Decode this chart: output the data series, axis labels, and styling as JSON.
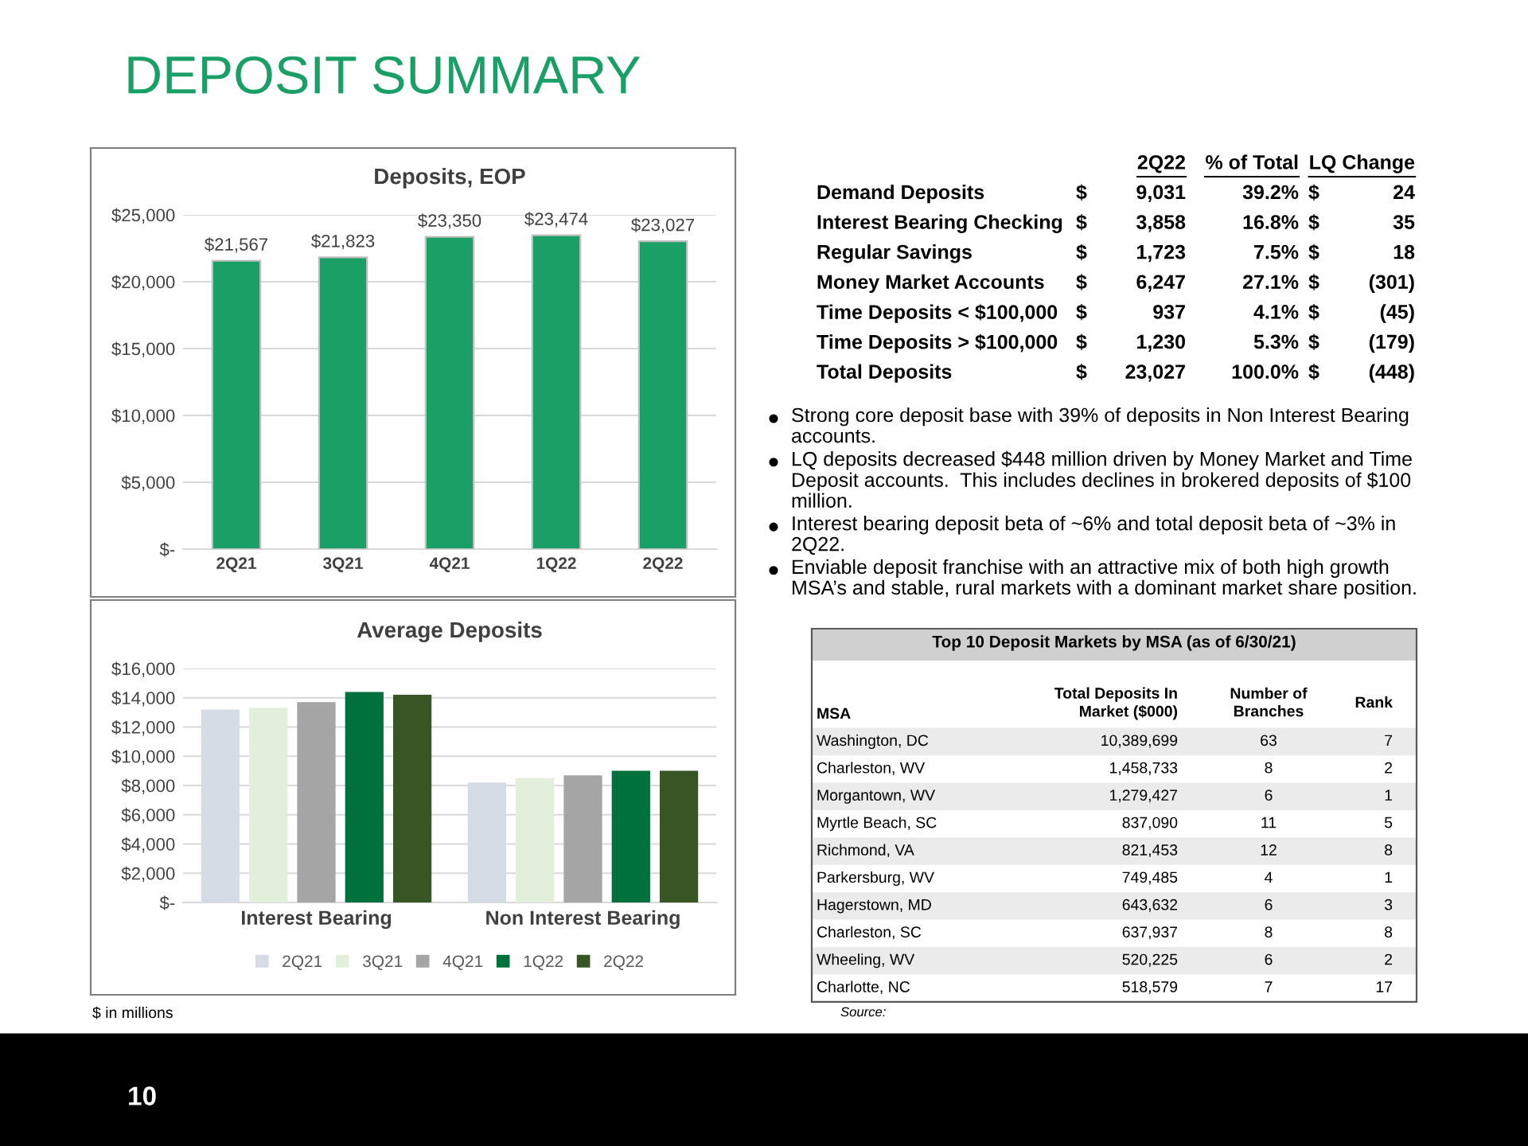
{
  "chart_data": [
    {
      "type": "other",
      "title": "DEPOSIT SUMMARY",
      "annotations": [
        "$ in millions",
        "10"
      ]
    },
    {
      "type": "bar",
      "title": "Deposits, EOP",
      "categories": [
        "2Q21",
        "3Q21",
        "4Q21",
        "1Q22",
        "2Q22"
      ],
      "values": [
        21567,
        21823,
        23350,
        23474,
        23027
      ],
      "color": "#1a9f66",
      "value_labels": [
        "$21,567",
        "$21,823",
        "$23,350",
        "$23,474",
        "$23,027"
      ],
      "ylim": [
        0,
        25000
      ],
      "yticks": [
        {
          "value": 0,
          "label": "$-"
        },
        {
          "value": 5000,
          "label": "$5,000"
        },
        {
          "value": 10000,
          "label": "$10,000"
        },
        {
          "value": 15000,
          "label": "$15,000"
        },
        {
          "value": 20000,
          "label": "$20,000"
        },
        {
          "value": 25000,
          "label": "$25,000"
        }
      ],
      "grid": "y"
    },
    {
      "type": "bar",
      "title": "Average Deposits",
      "categories": [
        "Interest Bearing",
        "Non Interest Bearing"
      ],
      "series": [
        {
          "name": "2Q21",
          "color": "#d6dce5",
          "values": [
            13200,
            8200
          ]
        },
        {
          "name": "3Q21",
          "color": "#e2efda",
          "values": [
            13300,
            8500
          ]
        },
        {
          "name": "4Q21",
          "color": "#a5a5a5",
          "values": [
            13700,
            8700
          ]
        },
        {
          "name": "1Q22",
          "color": "#00703c",
          "values": [
            14400,
            9000
          ]
        },
        {
          "name": "2Q22",
          "color": "#375623",
          "values": [
            14200,
            9000
          ]
        }
      ],
      "ylim": [
        0,
        16000
      ],
      "yticks": [
        {
          "value": 0,
          "label": "$-"
        },
        {
          "value": 2000,
          "label": "$2,000"
        },
        {
          "value": 4000,
          "label": "$4,000"
        },
        {
          "value": 6000,
          "label": "$6,000"
        },
        {
          "value": 8000,
          "label": "$8,000"
        },
        {
          "value": 10000,
          "label": "$10,000"
        },
        {
          "value": 12000,
          "label": "$12,000"
        },
        {
          "value": 14000,
          "label": "$14,000"
        },
        {
          "value": 16000,
          "label": "$16,000"
        }
      ],
      "grid": "y",
      "legend": "bottom"
    },
    {
      "type": "other",
      "categories": [
        "2Q22",
        "% of Total",
        "LQ Change"
      ],
      "y_categories": [
        "Demand Deposits",
        "Interest Bearing Checking",
        "Regular Savings",
        "Money Market Accounts",
        "Time Deposits < $100,000",
        "Time Deposits > $100,000",
        "Total Deposits"
      ],
      "cell_labels": [
        [
          "$ 9,031",
          "39.2%",
          "$ 24"
        ],
        [
          "$ 3,858",
          "16.8%",
          "$ 35"
        ],
        [
          "$ 1,723",
          "7.5%",
          "$ 18"
        ],
        [
          "$ 6,247",
          "27.1%",
          "$ (301)"
        ],
        [
          "$ 937",
          "4.1%",
          "$ (45)"
        ],
        [
          "$ 1,230",
          "5.3%",
          "$ (179)"
        ],
        [
          "$ 23,027",
          "100.0%",
          "$ (448)"
        ]
      ]
    },
    {
      "type": "other",
      "annotations": [
        "Strong core deposit base with 39% of deposits in Non Interest Bearing accounts.",
        "LQ deposits decreased $448 million driven by Money Market and Time Deposit accounts.  This includes declines in brokered deposits of $100 million.",
        "Interest bearing deposit beta of ~6% and total deposit beta of ~3% in 2Q22.",
        "Enviable deposit franchise with an attractive mix of both high growth MSA’s and stable, rural markets with a dominant market share position."
      ]
    },
    {
      "type": "other",
      "title": "Top 10 Deposit Markets by MSA (as of 6/30/21)",
      "ylabel": "MSA",
      "categories": [
        "Total Deposits In\nMarket ($000)",
        "Number of\nBranches",
        "Rank"
      ],
      "y_categories": [
        "Washington, DC",
        "Charleston, WV",
        "Morgantown, WV",
        "Myrtle Beach, SC",
        "Richmond, VA",
        "Parkersburg, WV",
        "Hagerstown, MD",
        "Charleston, SC",
        "Wheeling, WV",
        "Charlotte, NC"
      ],
      "cell_labels": [
        [
          "10,389,699",
          "63",
          "7"
        ],
        [
          "1,458,733",
          "8",
          "2"
        ],
        [
          "1,279,427",
          "6",
          "1"
        ],
        [
          "837,090",
          "11",
          "5"
        ],
        [
          "821,453",
          "12",
          "8"
        ],
        [
          "749,485",
          "4",
          "1"
        ],
        [
          "643,632",
          "6",
          "3"
        ],
        [
          "637,937",
          "8",
          "8"
        ],
        [
          "520,225",
          "6",
          "2"
        ],
        [
          "518,579",
          "7",
          "17"
        ]
      ],
      "annotations": [
        "Source:"
      ]
    }
  ]
}
